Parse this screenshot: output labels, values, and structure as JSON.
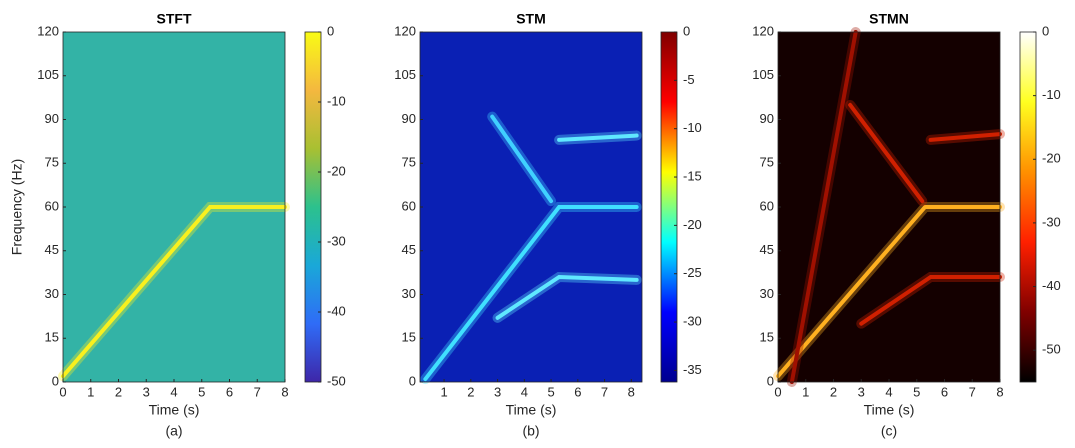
{
  "chart_data": [
    {
      "type": "spectrogram",
      "title": "STFT",
      "label": "(a)",
      "xlabel": "Time (s)",
      "ylabel": "Frequency (Hz)",
      "xlim": [
        0,
        8
      ],
      "xticks": [
        0,
        1,
        2,
        3,
        4,
        5,
        6,
        7,
        8
      ],
      "ylim": [
        0,
        120
      ],
      "yticks": [
        0,
        15,
        30,
        45,
        60,
        75,
        90,
        105,
        120
      ],
      "background": "#33b3a6",
      "colormap": [
        "#3e26a8",
        "#2f6cf7",
        "#1aa8d8",
        "#2cc18d",
        "#a8c032",
        "#f4b83f",
        "#f9fb15"
      ],
      "clim": [
        -50,
        0
      ],
      "cticks": [
        -50,
        -40,
        -30,
        -20,
        -10,
        0
      ],
      "series": [
        {
          "color": "#f9f01e",
          "x": [
            0,
            5.3,
            8
          ],
          "values": [
            2,
            60,
            60
          ]
        }
      ]
    },
    {
      "type": "spectrogram",
      "title": "STM",
      "label": "(b)",
      "xlabel": "Time (s)",
      "xlim": [
        0.1,
        8.4
      ],
      "xticks": [
        1,
        2,
        3,
        4,
        5,
        6,
        7,
        8
      ],
      "ylim": [
        0,
        120
      ],
      "yticks": [
        0,
        15,
        30,
        45,
        60,
        75,
        90,
        105,
        120
      ],
      "background": "#0a20b4",
      "colormap": [
        "#00008f",
        "#0000ff",
        "#00ffff",
        "#ffff00",
        "#ff0000",
        "#800000"
      ],
      "clim": [
        -36.2,
        0
      ],
      "cticks": [
        -35,
        -30,
        -25,
        -20,
        -15,
        -10,
        -5,
        0
      ],
      "series": [
        {
          "color": "#40e0ff",
          "x": [
            0.3,
            5.3,
            8.2
          ],
          "values": [
            1,
            60,
            60
          ]
        },
        {
          "color": "#40d0ff",
          "x": [
            2.8,
            5
          ],
          "values": [
            91,
            62
          ]
        },
        {
          "color": "#60e8ff",
          "x": [
            5.3,
            8.2
          ],
          "values": [
            83,
            84.5
          ]
        },
        {
          "color": "#60e8ff",
          "x": [
            3,
            5.3,
            8.2
          ],
          "values": [
            22,
            36,
            35
          ]
        }
      ]
    },
    {
      "type": "spectrogram",
      "title": "STMN",
      "label": "(c)",
      "xlabel": "Time (s)",
      "xlim": [
        0,
        8
      ],
      "xticks": [
        0,
        1,
        2,
        3,
        4,
        5,
        6,
        7,
        8
      ],
      "ylim": [
        0,
        120
      ],
      "yticks": [
        0,
        15,
        30,
        45,
        60,
        75,
        90,
        105,
        120
      ],
      "background": "#140000",
      "colormap": [
        "#000000",
        "#800000",
        "#ff2000",
        "#ff9000",
        "#ffff20",
        "#ffffff"
      ],
      "clim": [
        -55,
        0
      ],
      "cticks": [
        -50,
        -40,
        -30,
        -20,
        -10,
        0
      ],
      "series": [
        {
          "color": "#ffb020",
          "x": [
            0,
            5.3,
            8
          ],
          "values": [
            2,
            60,
            60
          ]
        },
        {
          "color": "#d02000",
          "x": [
            2.6,
            5.2
          ],
          "values": [
            95,
            62
          ]
        },
        {
          "color": "#d02000",
          "x": [
            5.5,
            8
          ],
          "values": [
            83,
            85
          ]
        },
        {
          "color": "#d02000",
          "x": [
            3,
            5.5,
            8
          ],
          "values": [
            20,
            36,
            36
          ]
        },
        {
          "color": "#a01000",
          "x": [
            0.5,
            2.8
          ],
          "values": [
            0,
            120
          ]
        }
      ]
    }
  ]
}
